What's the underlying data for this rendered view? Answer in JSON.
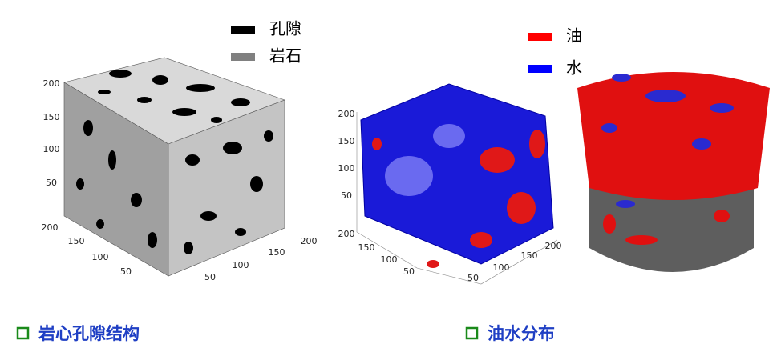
{
  "pore_legend": [
    {
      "label": "孔隙",
      "color": "#000000"
    },
    {
      "label": "岩石",
      "color": "#808080"
    }
  ],
  "cube1": {
    "z_ticks": [
      "200",
      "150",
      "100",
      "50"
    ],
    "x_ticks": [
      "200",
      "150",
      "100",
      "50"
    ],
    "y_ticks": [
      "50",
      "100",
      "150",
      "200"
    ]
  },
  "fluid_legend": [
    {
      "label": "油",
      "color": "#ff0000"
    },
    {
      "label": "水",
      "color": "#0000ff"
    }
  ],
  "cube2": {
    "z_ticks": [
      "200",
      "150",
      "100",
      "50"
    ],
    "x_ticks": [
      "200",
      "150",
      "100",
      "50"
    ],
    "y_ticks": [
      "50",
      "100",
      "150",
      "200"
    ]
  },
  "captions": [
    "岩心孔隙结构",
    "油水分布"
  ]
}
